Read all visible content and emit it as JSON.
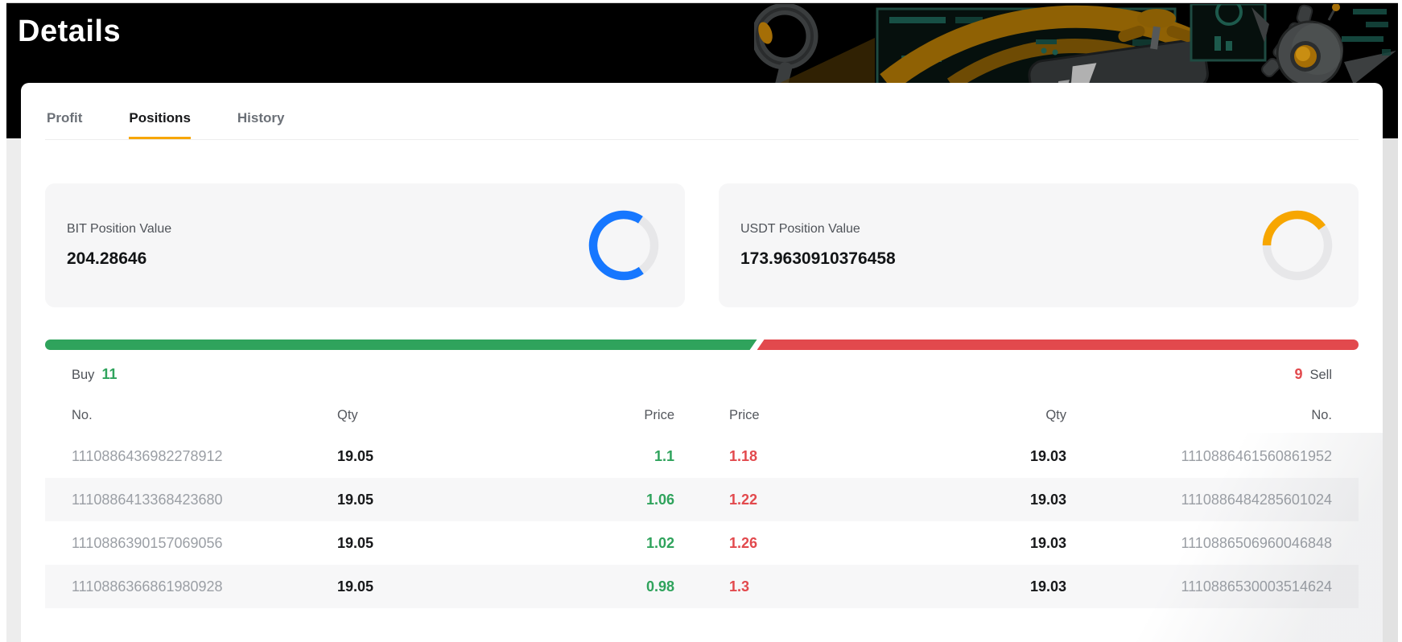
{
  "page": {
    "title": "Details"
  },
  "tabs": [
    {
      "label": "Profit",
      "active": false
    },
    {
      "label": "Positions",
      "active": true
    },
    {
      "label": "History",
      "active": false
    }
  ],
  "cards": [
    {
      "label": "BIT Position Value",
      "value": "204.28646",
      "ring_color": "#1677ff",
      "ring_percent": 69,
      "ring_start_deg": 55
    },
    {
      "label": "USDT Position Value",
      "value": "173.9630910376458",
      "ring_color": "#f7a600",
      "ring_percent": 40,
      "ring_start_deg": 180
    }
  ],
  "ratio_bar": {
    "buy_percent": 54.2,
    "buy_color": "#2fa35c",
    "sell_color": "#e2494d"
  },
  "counts": {
    "buy_label": "Buy",
    "buy_count": "11",
    "sell_count": "9",
    "sell_label": "Sell"
  },
  "table": {
    "left_headers": [
      "No.",
      "Qty",
      "Price"
    ],
    "right_headers": [
      "Price",
      "Qty",
      "No."
    ],
    "buy_rows": [
      {
        "no": "1110886436982278912",
        "qty": "19.05",
        "price": "1.1"
      },
      {
        "no": "1110886413368423680",
        "qty": "19.05",
        "price": "1.06"
      },
      {
        "no": "1110886390157069056",
        "qty": "19.05",
        "price": "1.02"
      },
      {
        "no": "1110886366861980928",
        "qty": "19.05",
        "price": "0.98"
      }
    ],
    "sell_rows": [
      {
        "price": "1.18",
        "qty": "19.03",
        "no": "1110886461560861952"
      },
      {
        "price": "1.22",
        "qty": "19.03",
        "no": "1110886484285601024"
      },
      {
        "price": "1.26",
        "qty": "19.03",
        "no": "1110886506960046848"
      },
      {
        "price": "1.3",
        "qty": "19.03",
        "no": "1110886530003514624"
      }
    ]
  },
  "colors": {
    "accent": "#f7a600",
    "buy_green": "#2fa35c",
    "sell_red": "#e2494d",
    "ring_blue": "#1677ff"
  }
}
